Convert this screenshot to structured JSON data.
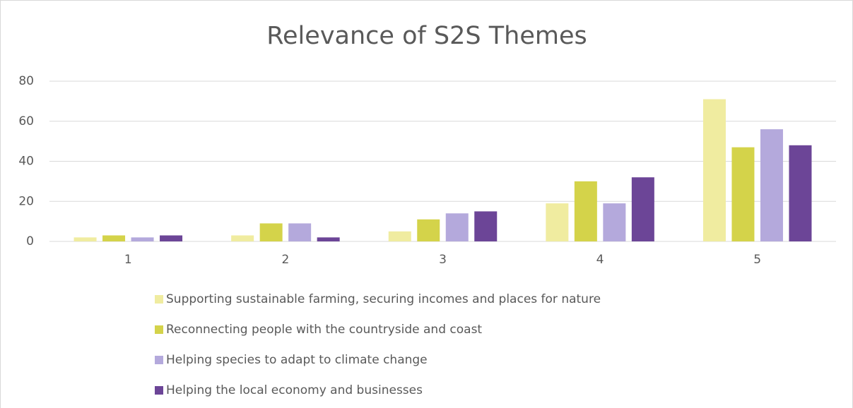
{
  "chart_data": {
    "type": "bar",
    "title": "Relevance of S2S Themes",
    "categories": [
      "1",
      "2",
      "3",
      "4",
      "5"
    ],
    "series": [
      {
        "name": "Supporting sustainable farming, securing incomes and places for nature",
        "color": "#f0eca0",
        "values": [
          2,
          3,
          5,
          19,
          71
        ]
      },
      {
        "name": "Reconnecting people with the countryside and coast",
        "color": "#d4d34a",
        "values": [
          3,
          9,
          11,
          30,
          47
        ]
      },
      {
        "name": "Helping species to adapt to climate change",
        "color": "#b4a9dc",
        "values": [
          2,
          9,
          14,
          19,
          56
        ]
      },
      {
        "name": "Helping the local economy and businesses",
        "color": "#6c4597",
        "values": [
          3,
          2,
          15,
          32,
          48
        ]
      }
    ],
    "ylim": [
      0,
      80
    ],
    "yticks": [
      0,
      20,
      40,
      60,
      80
    ],
    "grid": true,
    "legend": "bottom"
  }
}
